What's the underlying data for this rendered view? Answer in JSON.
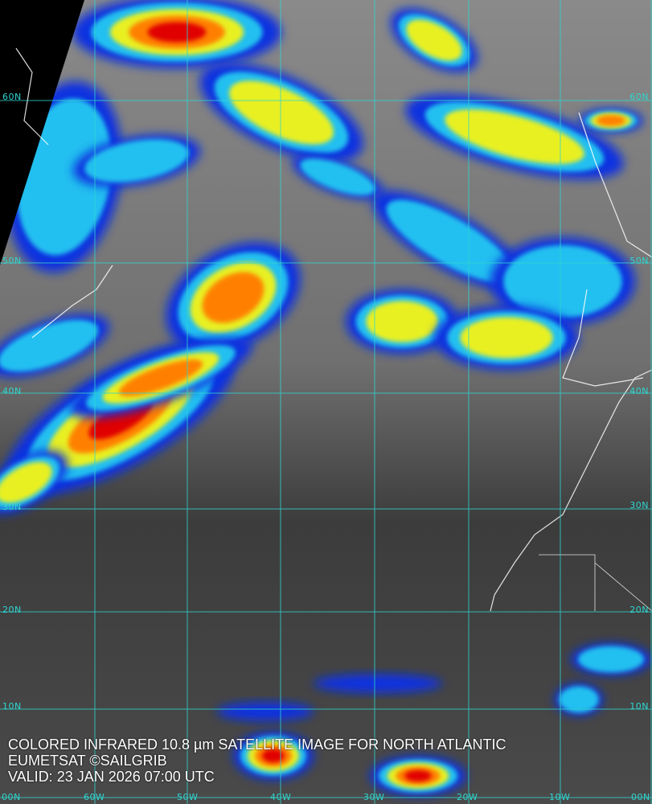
{
  "caption": {
    "line1": "COLORED INFRARED 10.8 µm SATELLITE IMAGE FOR NORTH ATLANTIC",
    "line2": "EUMETSAT ©SAILGRIB",
    "line3": "VALID:  23 JAN 2026 07:00 UTC"
  },
  "lat_labels_left": [
    "60N",
    "50N",
    "40N",
    "30N",
    "20N",
    "10N"
  ],
  "lat_labels_right": [
    "60N",
    "50N",
    "40N",
    "30N",
    "20N",
    "10N"
  ],
  "lon_labels": [
    "00N",
    "60W",
    "50W",
    "40W",
    "30W",
    "20W",
    "10W",
    "00N"
  ],
  "colors": {
    "grid": "#2fd6d0",
    "coast": "#ffffff",
    "cold_top": "#d00000",
    "warm": "#0020e0"
  }
}
